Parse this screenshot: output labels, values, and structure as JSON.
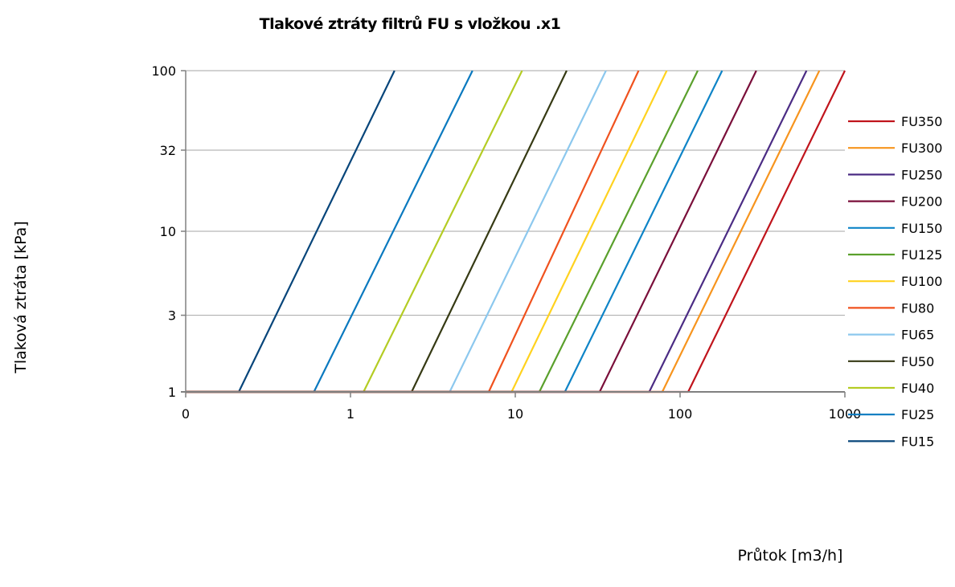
{
  "chart_data": {
    "type": "line",
    "title": "Tlakové ztráty filtrů FU s vložkou .x1",
    "xlabel": "Průtok [m3/h]",
    "ylabel": "Tlaková ztráta [kPa]",
    "x_scale": "log",
    "y_scale": "log",
    "xlim": [
      0.1,
      1000
    ],
    "ylim": [
      1,
      100
    ],
    "x_ticks": [
      "0",
      "1",
      "10",
      "100",
      "1000"
    ],
    "y_ticks": [
      "1",
      "3",
      "10",
      "32",
      "100"
    ],
    "grid": "horizontal",
    "legend_position": "right",
    "series": [
      {
        "name": "FU350",
        "color": "#c0141c",
        "x": [
          112,
          1000
        ],
        "y": [
          1,
          100
        ]
      },
      {
        "name": "FU300",
        "color": "#f7941d",
        "x": [
          78,
          700
        ],
        "y": [
          1,
          100
        ]
      },
      {
        "name": "FU250",
        "color": "#4b2c84",
        "x": [
          65,
          585
        ],
        "y": [
          1,
          100
        ]
      },
      {
        "name": "FU200",
        "color": "#7a0f3a",
        "x": [
          32.5,
          290
        ],
        "y": [
          1,
          100
        ]
      },
      {
        "name": "FU150",
        "color": "#0e84c7",
        "x": [
          20,
          180
        ],
        "y": [
          1,
          100
        ]
      },
      {
        "name": "FU125",
        "color": "#5aa02c",
        "x": [
          14,
          128
        ],
        "y": [
          1,
          100
        ]
      },
      {
        "name": "FU100",
        "color": "#ffd21f",
        "x": [
          9.5,
          83
        ],
        "y": [
          1,
          100
        ]
      },
      {
        "name": "FU80",
        "color": "#f0521e",
        "x": [
          6.9,
          56
        ],
        "y": [
          1,
          100
        ]
      },
      {
        "name": "FU65",
        "color": "#8cc8ee",
        "x": [
          4,
          35.5
        ],
        "y": [
          1,
          100
        ]
      },
      {
        "name": "FU50",
        "color": "#363a14",
        "x": [
          2.35,
          20.5
        ],
        "y": [
          1,
          100
        ]
      },
      {
        "name": "FU40",
        "color": "#b4cc24",
        "x": [
          1.2,
          11
        ],
        "y": [
          1,
          100
        ]
      },
      {
        "name": "FU25",
        "color": "#0a79bf",
        "x": [
          0.6,
          5.5
        ],
        "y": [
          1,
          100
        ]
      },
      {
        "name": "FU15",
        "color": "#07457a",
        "x": [
          0.21,
          1.85
        ],
        "y": [
          1,
          100
        ]
      }
    ]
  }
}
